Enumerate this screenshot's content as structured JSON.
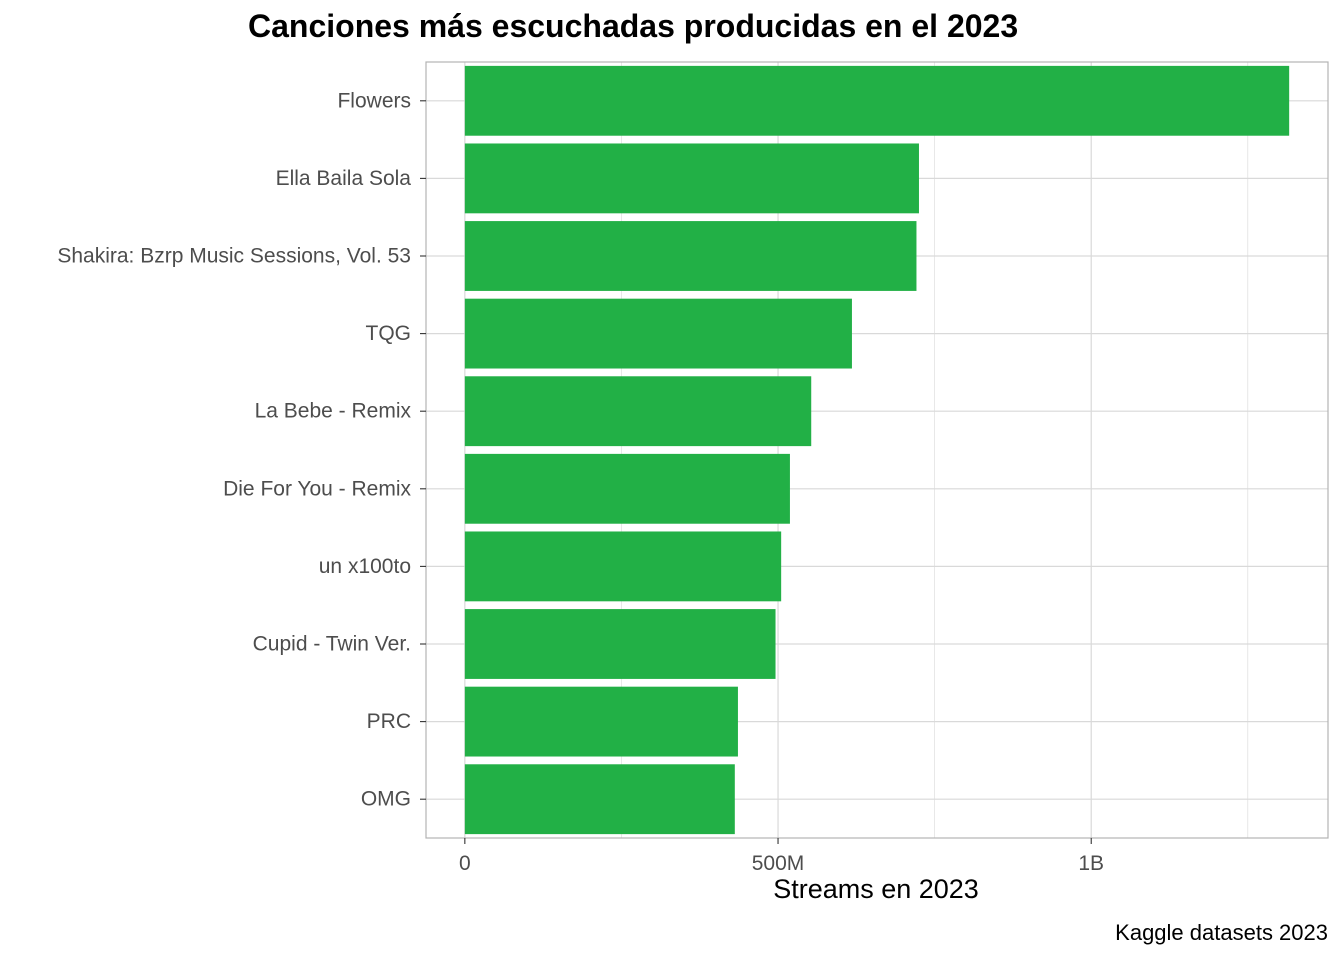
{
  "title": "Canciones más escuchadas producidas en el 2023",
  "xlabel": "Streams en 2023",
  "caption": "Kaggle datasets 2023",
  "colors": {
    "bar": "#22b046",
    "grid": "#d9d9d9",
    "panel_border": "#b3b3b3",
    "tick_text": "#4d4d4d"
  },
  "chart_data": {
    "type": "bar",
    "orientation": "horizontal",
    "title": "Canciones más escuchadas producidas en el 2023",
    "xlabel": "Streams en 2023",
    "ylabel": "",
    "categories": [
      "Flowers",
      "Ella Baila Sola",
      "Shakira: Bzrp Music Sessions, Vol. 53",
      "TQG",
      "La Bebe - Remix",
      "Die For You - Remix",
      "un x100to",
      "Cupid - Twin Ver.",
      "PRC",
      "OMG"
    ],
    "values": [
      1316000000,
      725000000,
      721000000,
      618000000,
      553000000,
      519000000,
      505000000,
      496000000,
      436000000,
      431000000
    ],
    "xlim": [
      -62000000,
      1378000000
    ],
    "xticks": [
      {
        "value": 0,
        "label": "0"
      },
      {
        "value": 500000000,
        "label": "500M"
      },
      {
        "value": 1000000000,
        "label": "1B"
      }
    ],
    "minor_xticks": [
      250000000,
      750000000,
      1250000000
    ],
    "grid": true,
    "legend": "none"
  }
}
